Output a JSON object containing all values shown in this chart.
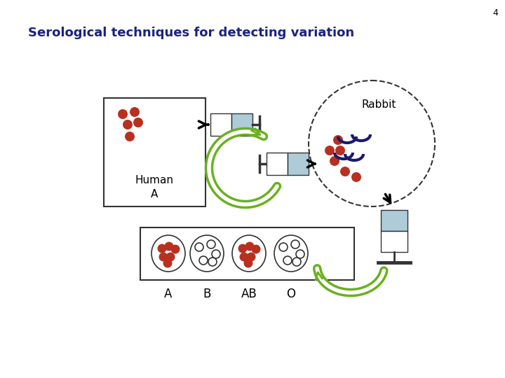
{
  "title": "Serological techniques for detecting variation",
  "title_color": "#1a237e",
  "title_fontsize": 13,
  "slide_number": "4",
  "background_color": "#ffffff",
  "human_label_line1": "Human",
  "human_label_line2": "A",
  "rabbit_label": "Rabbit",
  "blood_types": [
    "A",
    "B",
    "AB",
    "O"
  ],
  "dot_color_red": "#b83020",
  "dot_color_blue": "#1a1a6e",
  "light_blue": "#aeccd8",
  "green_arrow": "#6ab020",
  "box_outline": "#333333"
}
